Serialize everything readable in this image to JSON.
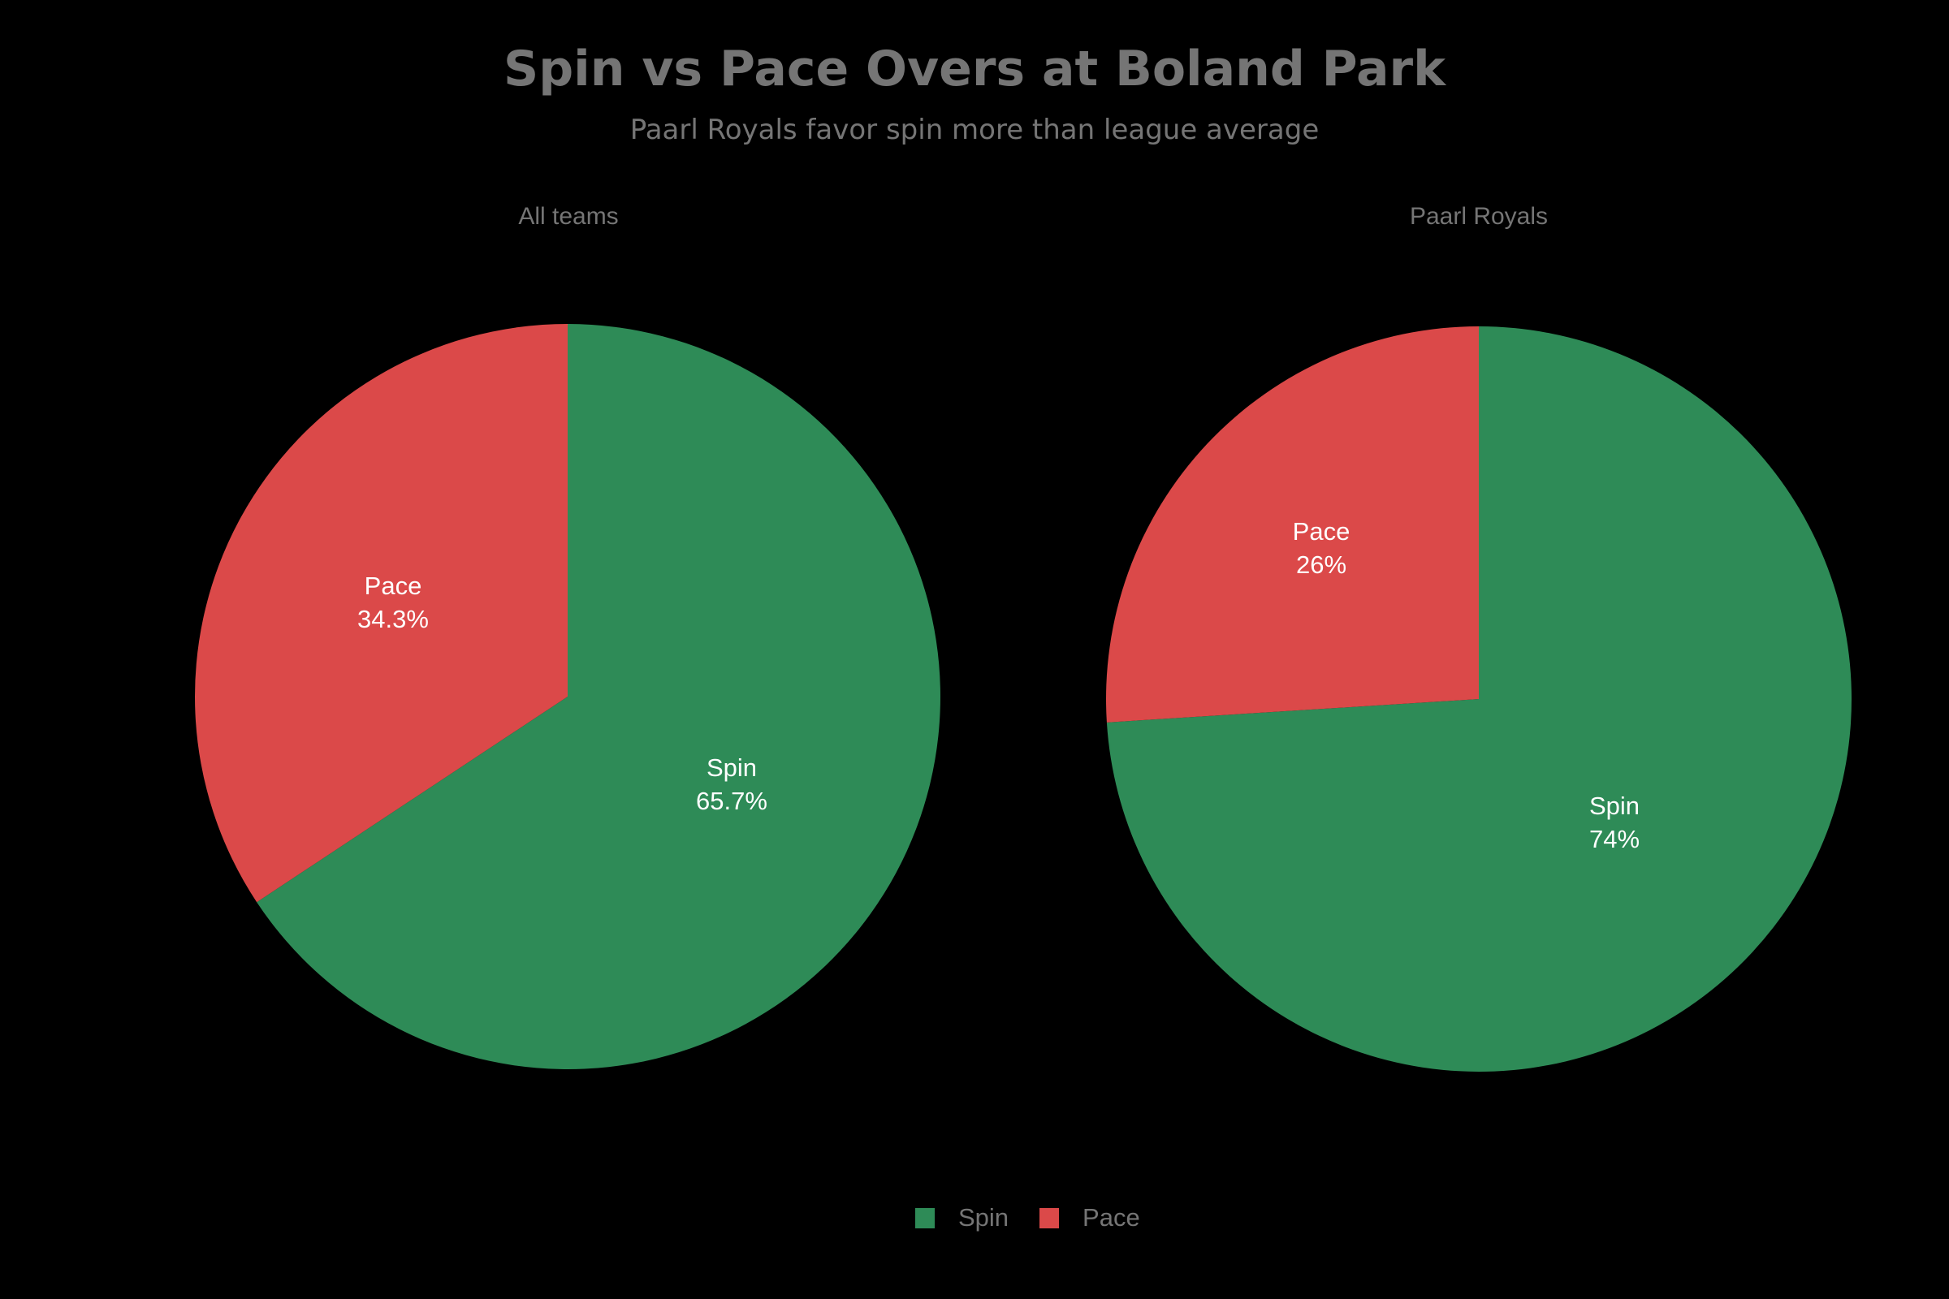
{
  "title": "Spin vs Pace Overs at Boland Park",
  "subtitle": "Paarl Royals favor spin more than league average",
  "colors": {
    "spin": "#2e8b57",
    "pace": "#db4949",
    "text": "#757575"
  },
  "subplots": [
    {
      "title": "All teams",
      "slices": [
        {
          "label": "Spin",
          "pct_label": "65.7%"
        },
        {
          "label": "Pace",
          "pct_label": "34.3%"
        }
      ]
    },
    {
      "title": "Paarl Royals",
      "slices": [
        {
          "label": "Spin",
          "pct_label": "74%"
        },
        {
          "label": "Pace",
          "pct_label": "26%"
        }
      ]
    }
  ],
  "legend": [
    {
      "label": "Spin"
    },
    {
      "label": "Pace"
    }
  ],
  "chart_data": [
    {
      "type": "pie",
      "title": "All teams",
      "categories": [
        "Spin",
        "Pace"
      ],
      "values": [
        65.7,
        34.3
      ],
      "unit": "%"
    },
    {
      "type": "pie",
      "title": "Paarl Royals",
      "categories": [
        "Spin",
        "Pace"
      ],
      "values": [
        74,
        26
      ],
      "unit": "%"
    }
  ]
}
